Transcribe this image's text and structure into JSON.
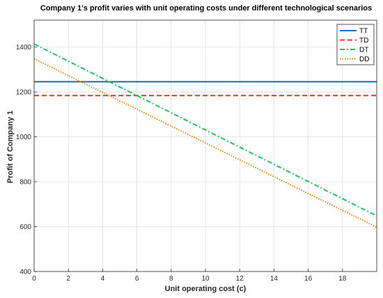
{
  "chart_data": {
    "type": "line",
    "title": "Company 1's profit varies with unit operating costs under different technological scenarios",
    "xlabel": "Unit operating cost (c)",
    "ylabel": "Profit of Company 1",
    "xlim": [
      0,
      20
    ],
    "ylim": [
      400,
      1520
    ],
    "xticks": [
      0,
      2,
      4,
      6,
      8,
      10,
      12,
      14,
      16,
      18
    ],
    "yticks": [
      400,
      600,
      800,
      1000,
      1200,
      1400
    ],
    "grid": true,
    "legend_position": "top-right",
    "series": [
      {
        "name": "TT",
        "x": [
          0,
          20
        ],
        "y": [
          1246,
          1246
        ],
        "color": "#0072BD",
        "style": "solid"
      },
      {
        "name": "TD",
        "x": [
          0,
          20
        ],
        "y": [
          1184,
          1184
        ],
        "color": "#FF2A2A",
        "style": "dashed"
      },
      {
        "name": "DT",
        "x": [
          0,
          20
        ],
        "y": [
          1414,
          648
        ],
        "color": "#1FC45A",
        "style": "dashdot"
      },
      {
        "name": "DD",
        "x": [
          0,
          20
        ],
        "y": [
          1348,
          598
        ],
        "color": "#D9890F",
        "style": "dotted"
      }
    ]
  }
}
